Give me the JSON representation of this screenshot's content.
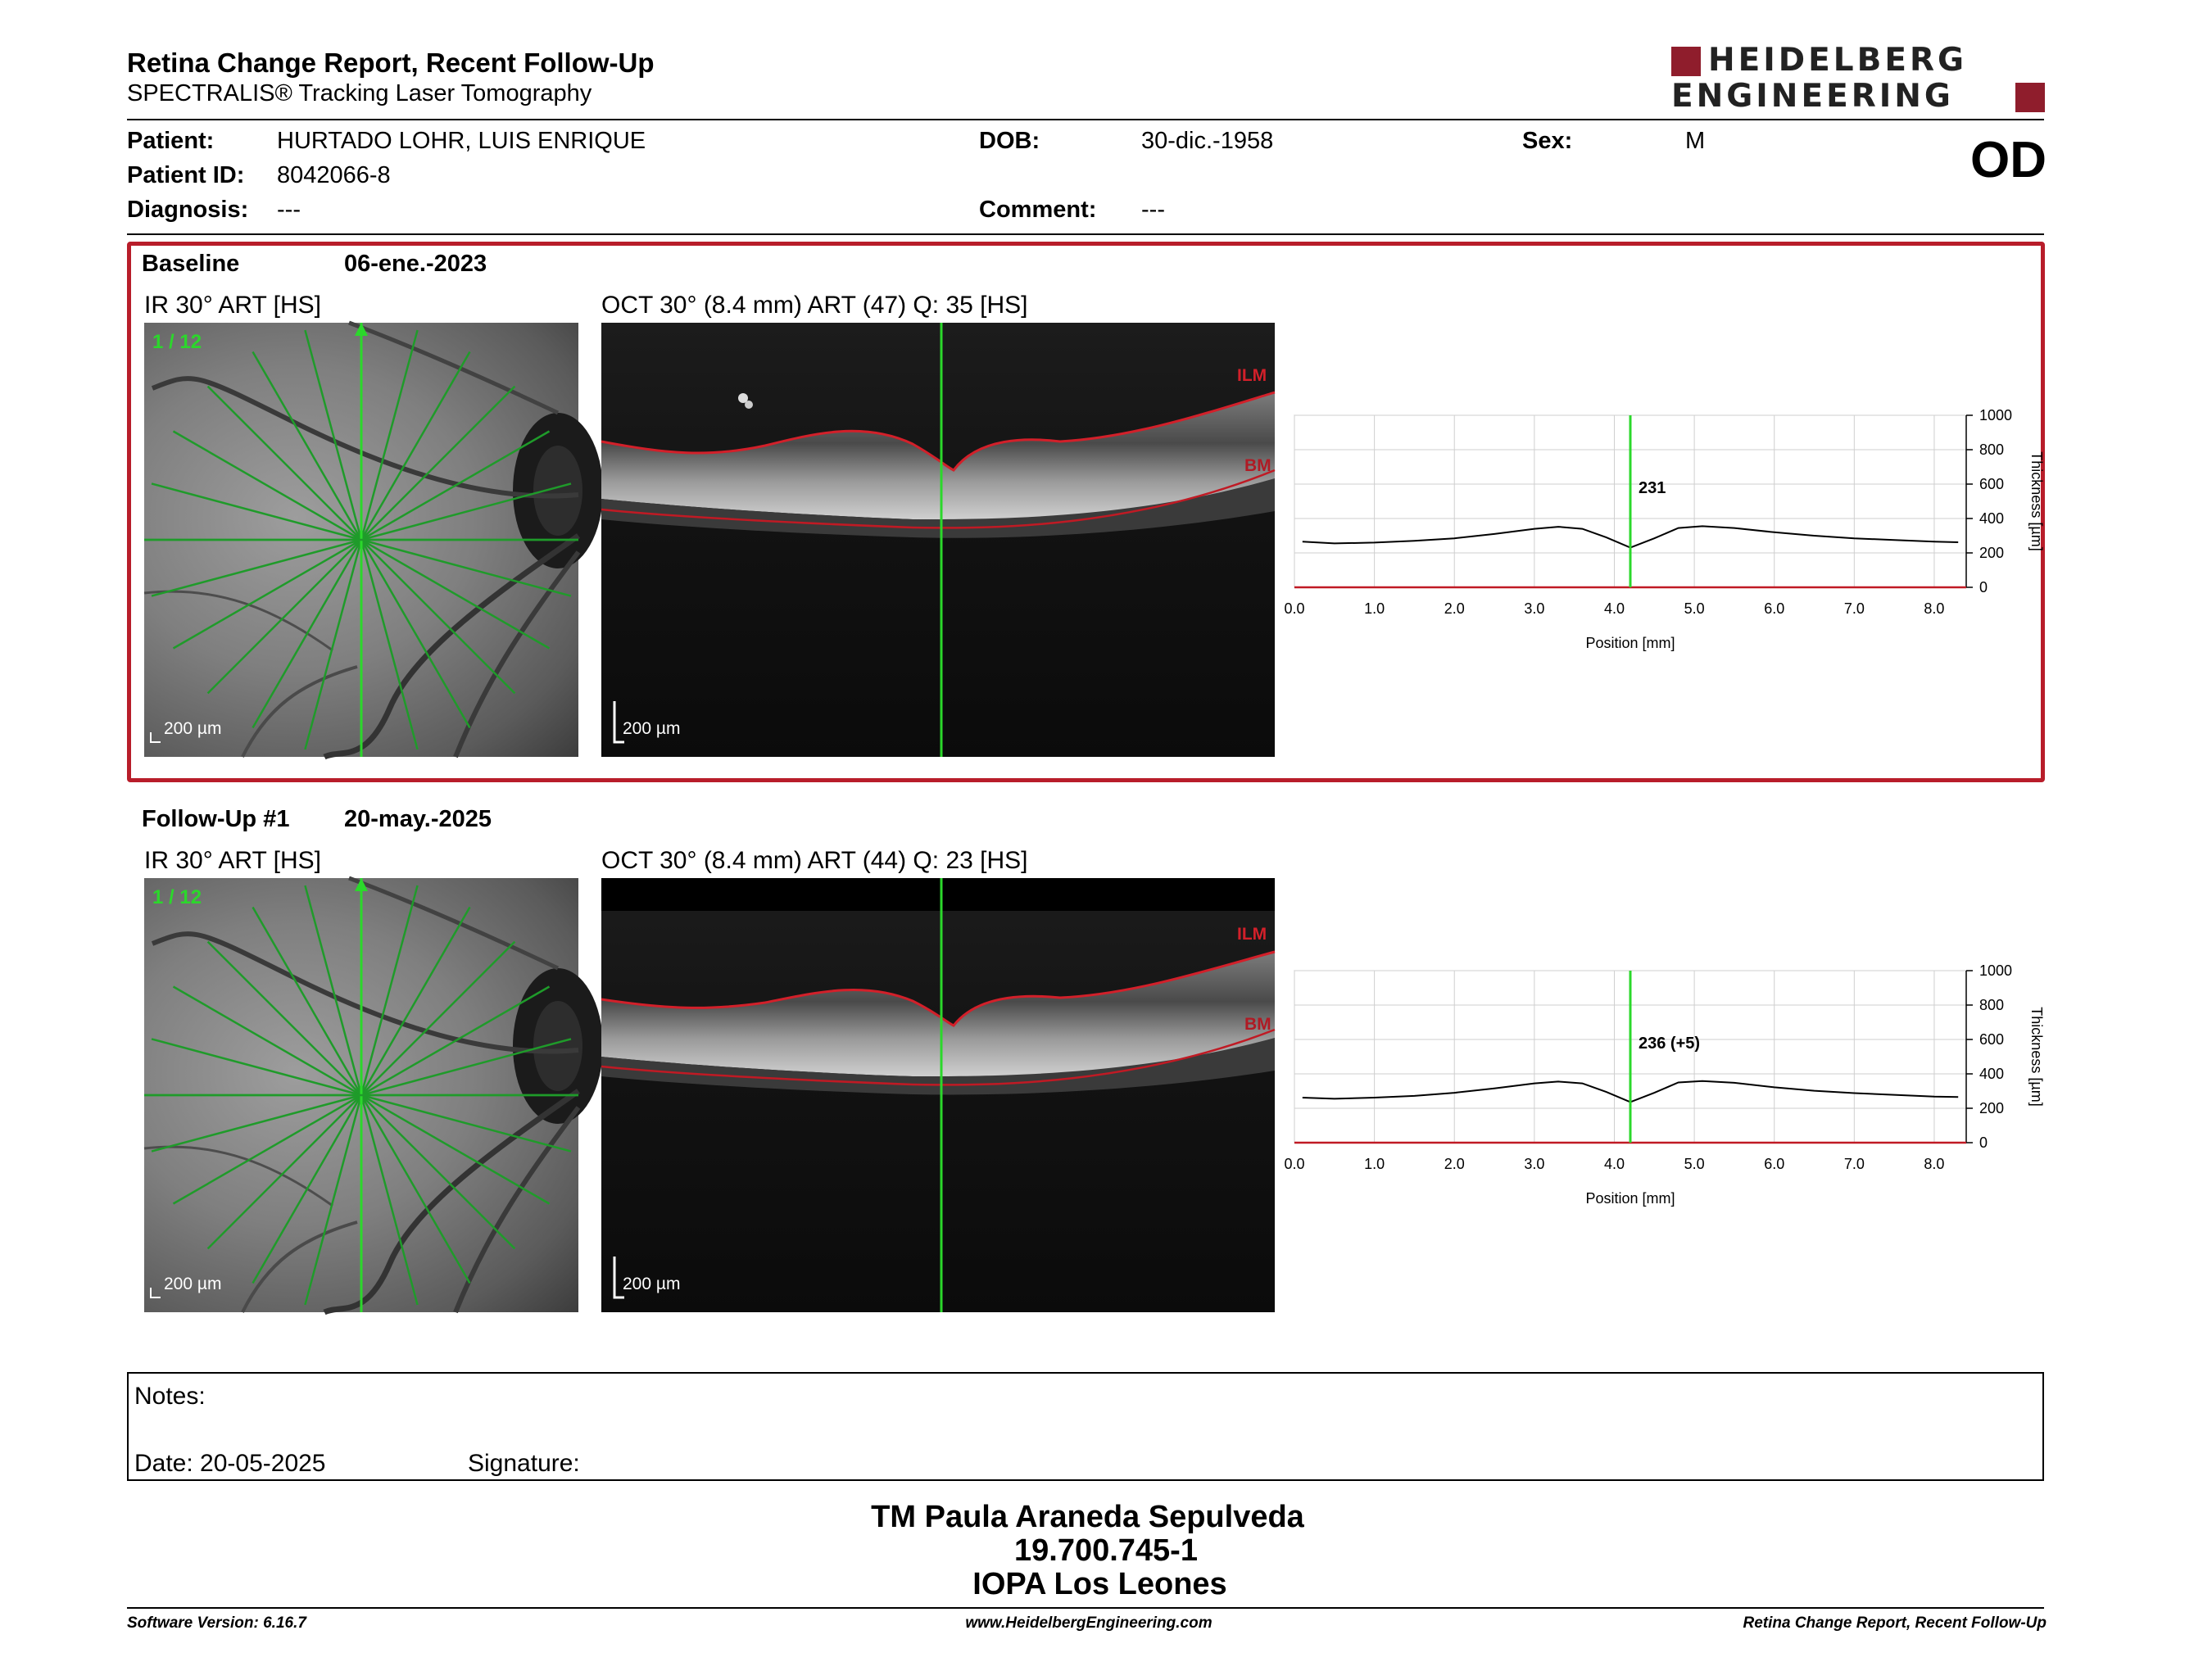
{
  "header": {
    "title": "Retina Change Report, Recent Follow-Up",
    "subtitle": "SPECTRALIS® Tracking Laser Tomography",
    "logo_line1": "HEIDELBERG",
    "logo_line2": "ENGINEERING",
    "eye": "OD"
  },
  "patient": {
    "patient_label": "Patient:",
    "patient_name": "HURTADO LOHR, LUIS ENRIQUE",
    "id_label": "Patient ID:",
    "id_value": "8042066-8",
    "diagnosis_label": "Diagnosis:",
    "diagnosis_value": "---",
    "dob_label": "DOB:",
    "dob_value": "30-dic.-1958",
    "comment_label": "Comment:",
    "comment_value": "---",
    "sex_label": "Sex:",
    "sex_value": "M"
  },
  "baseline": {
    "label": "Baseline",
    "date": "06-ene.-2023",
    "ir_title": "IR 30° ART [HS]",
    "ir_counter": "1 / 12",
    "ir_scale": "200 µm",
    "oct_title": "OCT 30° (8.4 mm) ART (47) Q: 35 [HS]",
    "oct_scale": "200 µm",
    "ilm": "ILM",
    "bm": "BM",
    "marker_value": "231"
  },
  "followup": {
    "label": "Follow-Up #1",
    "date": "20-may.-2025",
    "ir_title": "IR 30° ART [HS]",
    "ir_counter": "1 / 12",
    "ir_scale": "200 µm",
    "oct_title": "OCT 30° (8.4 mm) ART (44) Q: 23 [HS]",
    "oct_scale": "200 µm",
    "ilm": "ILM",
    "bm": "BM",
    "marker_value": "236 (+5)"
  },
  "chart_data": [
    {
      "type": "line",
      "xlabel": "Position [mm]",
      "ylabel": "Thickness [µm]",
      "xlim": [
        0,
        8.4
      ],
      "ylim": [
        0,
        1000
      ],
      "xticks": [
        "0.0",
        "1.0",
        "2.0",
        "3.0",
        "4.0",
        "5.0",
        "6.0",
        "7.0",
        "8.0"
      ],
      "yticks": [
        "0",
        "200",
        "400",
        "600",
        "800",
        "1000"
      ],
      "grid": true,
      "marker_x": 4.2,
      "marker_label": "231",
      "x": [
        0.1,
        0.5,
        1.0,
        1.5,
        2.0,
        2.5,
        3.0,
        3.3,
        3.6,
        3.9,
        4.2,
        4.5,
        4.8,
        5.1,
        5.5,
        6.0,
        6.5,
        7.0,
        7.5,
        8.0,
        8.3
      ],
      "y": [
        265,
        255,
        260,
        270,
        285,
        310,
        340,
        352,
        340,
        290,
        231,
        285,
        345,
        355,
        345,
        320,
        300,
        285,
        275,
        265,
        262
      ]
    },
    {
      "type": "line",
      "xlabel": "Position [mm]",
      "ylabel": "Thickness [µm]",
      "xlim": [
        0,
        8.4
      ],
      "ylim": [
        0,
        1000
      ],
      "xticks": [
        "0.0",
        "1.0",
        "2.0",
        "3.0",
        "4.0",
        "5.0",
        "6.0",
        "7.0",
        "8.0"
      ],
      "yticks": [
        "0",
        "200",
        "400",
        "600",
        "800",
        "1000"
      ],
      "grid": true,
      "marker_x": 4.2,
      "marker_label": "236 (+5)",
      "x": [
        0.1,
        0.5,
        1.0,
        1.5,
        2.0,
        2.5,
        3.0,
        3.3,
        3.6,
        3.9,
        4.2,
        4.5,
        4.8,
        5.1,
        5.5,
        6.0,
        6.5,
        7.0,
        7.5,
        8.0,
        8.3
      ],
      "y": [
        262,
        255,
        262,
        272,
        290,
        315,
        345,
        355,
        345,
        295,
        236,
        290,
        350,
        358,
        348,
        322,
        302,
        288,
        278,
        268,
        265
      ]
    }
  ],
  "notes": {
    "notes_label": "Notes:",
    "date_label": "Date: 20-05-2025",
    "signature_label": "Signature:"
  },
  "signer": {
    "name": "TM Paula Araneda Sepulveda",
    "id": "19.700.745-1",
    "org": "IOPA Los Leones"
  },
  "footer": {
    "software": "Software Version: 6.16.7",
    "website": "www.HeidelbergEngineering.com",
    "report": "Retina Change Report, Recent Follow-Up"
  },
  "colors": {
    "brand_red": "#8f1d2c",
    "panel_border": "#b81d2a",
    "scan_line": "#2bd82b",
    "ilm_line": "#d2202a"
  }
}
